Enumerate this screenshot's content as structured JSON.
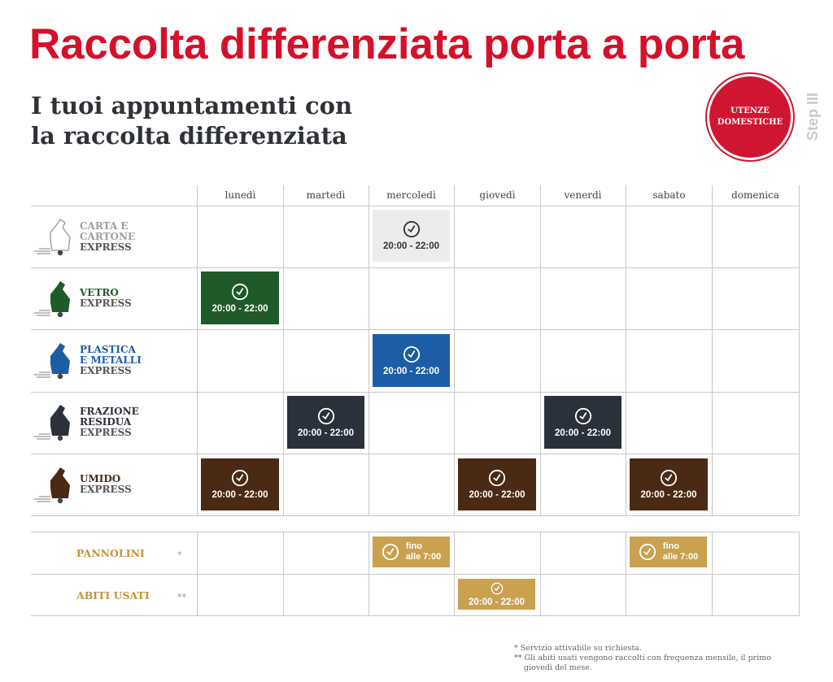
{
  "header": {
    "title": "Raccolta differenziata porta a porta",
    "subtitle_line1": "I tuoi appuntamenti con",
    "subtitle_line2": "la raccolta differenziata",
    "badge_line1": "UTENZE",
    "badge_line2": "DOMESTICHE",
    "step": "Step III"
  },
  "days": [
    "lunedì",
    "martedì",
    "mercoledì",
    "giovedì",
    "venerdì",
    "sabato",
    "domenica"
  ],
  "rows": {
    "carta": {
      "line1": "CARTA E",
      "line2": "CARTONE",
      "express": "EXPRESS",
      "color": "#9e9e9e"
    },
    "vetro": {
      "line1": "VETRO",
      "express": "EXPRESS",
      "color": "#1f5a2a"
    },
    "plastica": {
      "line1": "PLASTICA",
      "line2": "E METALLI",
      "express": "EXPRESS",
      "color": "#1b5ea6"
    },
    "residua": {
      "line1": "FRAZIONE",
      "line2": "RESIDUA",
      "express": "EXPRESS",
      "color": "#2b313b"
    },
    "umido": {
      "line1": "UMIDO",
      "express": "EXPRESS",
      "color": "#4a2a14"
    },
    "pannolini": {
      "label": "PANNOLINI",
      "star": "*",
      "color": "#c2963e"
    },
    "abiti": {
      "label": "ABITI USATI",
      "star": "**",
      "color": "#c2963e"
    }
  },
  "slots": {
    "carta_mercoledi": "20:00 - 22:00",
    "vetro_lunedi": "20:00 - 22:00",
    "plastica_mercoledi": "20:00 - 22:00",
    "residua_martedi": "20:00 - 22:00",
    "residua_venerdi": "20:00 - 22:00",
    "umido_lunedi": "20:00 - 22:00",
    "umido_giovedi": "20:00 - 22:00",
    "umido_sabato": "20:00 - 22:00",
    "pannolini_mercoledi_1": "fino",
    "pannolini_mercoledi_2": "alle 7:00",
    "pannolini_sabato_1": "fino",
    "pannolini_sabato_2": "alle 7:00",
    "abiti_giovedi": "20:00 - 22:00"
  },
  "notes": {
    "note1": "*  Servizio attivabile su richiesta.",
    "note2": "** Gli abiti usati vengono raccolti con frequenza mensile, il primo giovedì del mese."
  },
  "icons": {
    "clock": "clock-icon",
    "bag": "trash-bag-icon"
  },
  "colors": {
    "title_red": "#d7102a",
    "badge_red": "#cf1530",
    "carta_bg": "#ececec",
    "vetro_bg": "#1f5a2a",
    "plastica_bg": "#1b5ea6",
    "residua_bg": "#2b313b",
    "umido_bg": "#4a2a14",
    "gold_bg": "#c9a14f"
  }
}
